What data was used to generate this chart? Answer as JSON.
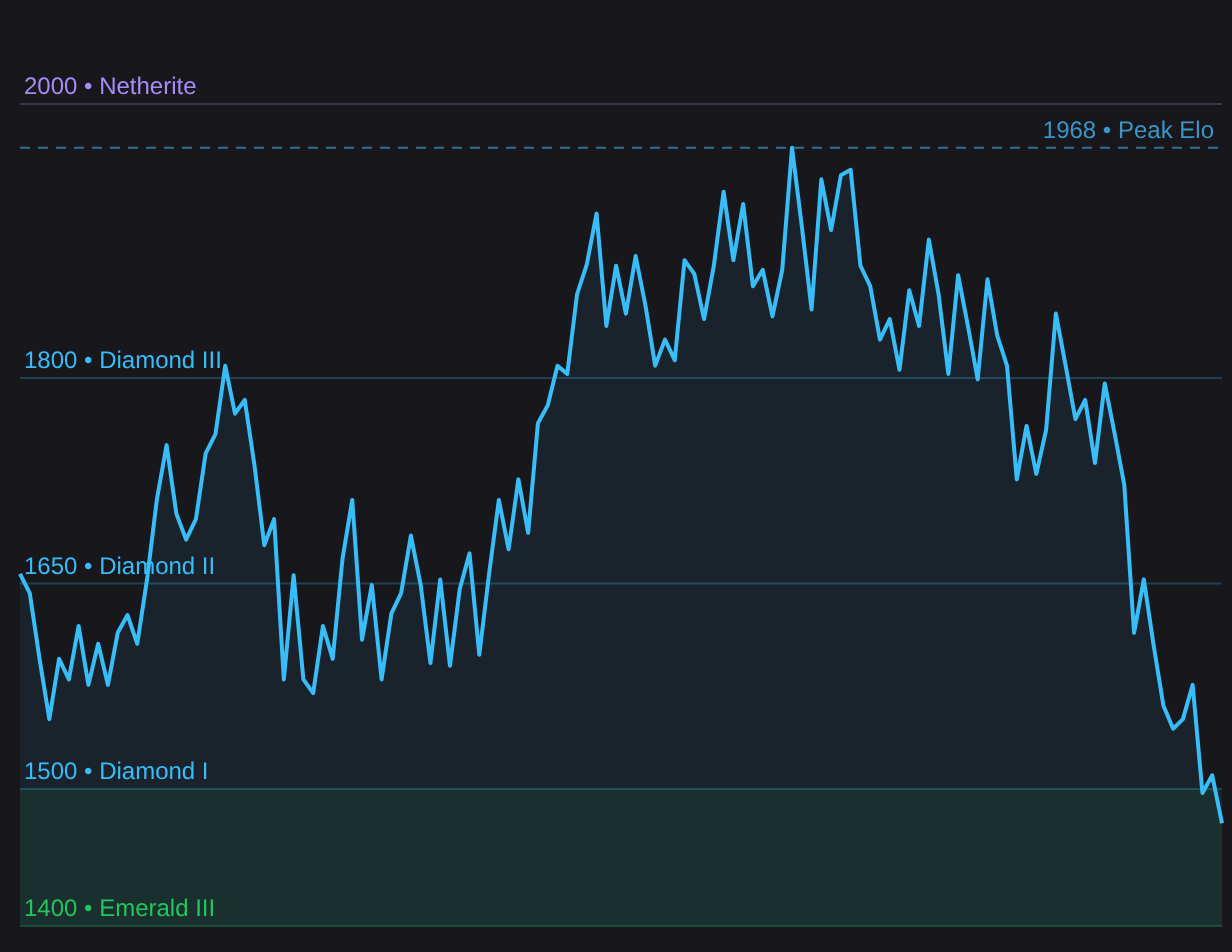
{
  "chart_data": {
    "type": "area",
    "categories": [
      null,
      null,
      null,
      null,
      null,
      null,
      null,
      null,
      null,
      null,
      null,
      null,
      null,
      null,
      null,
      null,
      null,
      null,
      null,
      null,
      null,
      null,
      null,
      null,
      null,
      null,
      null,
      null,
      null,
      null,
      null,
      null,
      null,
      null,
      null,
      null,
      null,
      null,
      null,
      null,
      null,
      null,
      null,
      null,
      null,
      null,
      null,
      null,
      null,
      null,
      null,
      null,
      null,
      null,
      null,
      null,
      null,
      null,
      null,
      null,
      null,
      null,
      null,
      null,
      null,
      null,
      null,
      null,
      null,
      null,
      null,
      null,
      null,
      null,
      null,
      null,
      null,
      null,
      null,
      null,
      null,
      null,
      null,
      null,
      null,
      null,
      null,
      null,
      null,
      null,
      null,
      null,
      null,
      null,
      null,
      null,
      null,
      null,
      null,
      null,
      null,
      null,
      null,
      null,
      null,
      null,
      null,
      null,
      null,
      null,
      null,
      null,
      null,
      null,
      null,
      null,
      null,
      null,
      null,
      null,
      null,
      null,
      null,
      null
    ],
    "series": [
      {
        "color": "#38bdf8",
        "values": [
          1657,
          1643,
          1595,
          1551,
          1595,
          1580,
          1619,
          1576,
          1606,
          1576,
          1614,
          1627,
          1606,
          1653,
          1711,
          1751,
          1701,
          1682,
          1697,
          1745,
          1759,
          1809,
          1774,
          1784,
          1736,
          1678,
          1697,
          1580,
          1656,
          1580,
          1570,
          1619,
          1595,
          1668,
          1711,
          1609,
          1649,
          1580,
          1628,
          1643,
          1685,
          1649,
          1592,
          1653,
          1590,
          1646,
          1672,
          1598,
          1657,
          1711,
          1675,
          1726,
          1687,
          1767,
          1780,
          1809,
          1803,
          1861,
          1883,
          1920,
          1838,
          1882,
          1847,
          1889,
          1853,
          1809,
          1828,
          1813,
          1886,
          1876,
          1843,
          1882,
          1936,
          1886,
          1927,
          1867,
          1879,
          1845,
          1879,
          1968,
          1911,
          1850,
          1945,
          1908,
          1948,
          1952,
          1882,
          1867,
          1828,
          1843,
          1806,
          1864,
          1838,
          1901,
          1861,
          1803,
          1875,
          1838,
          1799,
          1872,
          1831,
          1809,
          1726,
          1765,
          1730,
          1762,
          1847,
          1809,
          1770,
          1784,
          1738,
          1796,
          1760,
          1722,
          1614,
          1653,
          1605,
          1561,
          1544,
          1551,
          1576,
          1497,
          1510,
          1475
        ]
      }
    ],
    "ylim": [
      1400,
      2000
    ],
    "yticks": [
      {
        "value": 1400,
        "label": "1400 • Emerald III"
      },
      {
        "value": 1500,
        "label": "1500 • Diamond I"
      },
      {
        "value": 1650,
        "label": "1650 • Diamond II"
      },
      {
        "value": 1800,
        "label": "1800 • Diamond III"
      },
      {
        "value": 2000,
        "label": "2000 • Netherite"
      }
    ],
    "tick_labels": "y",
    "ref_lines": [
      {
        "axis": "y",
        "value": 2000,
        "color": "#a78bfa"
      },
      {
        "axis": "y",
        "value": 1968,
        "label": "1968 • Peak Elo",
        "color": "#3b95c8",
        "line_style": "dashed"
      },
      {
        "axis": "y",
        "value": 1800,
        "color": "#38bdf8"
      },
      {
        "axis": "y",
        "value": 1650,
        "color": "#38bdf8"
      },
      {
        "axis": "y",
        "value": 1500,
        "color": "#38bdf8"
      },
      {
        "axis": "y",
        "value": 1400,
        "color": "#22c55e"
      }
    ],
    "bands": [
      {
        "axis": "y",
        "from": 1400,
        "to": 1500,
        "color": "#182620"
      }
    ]
  }
}
